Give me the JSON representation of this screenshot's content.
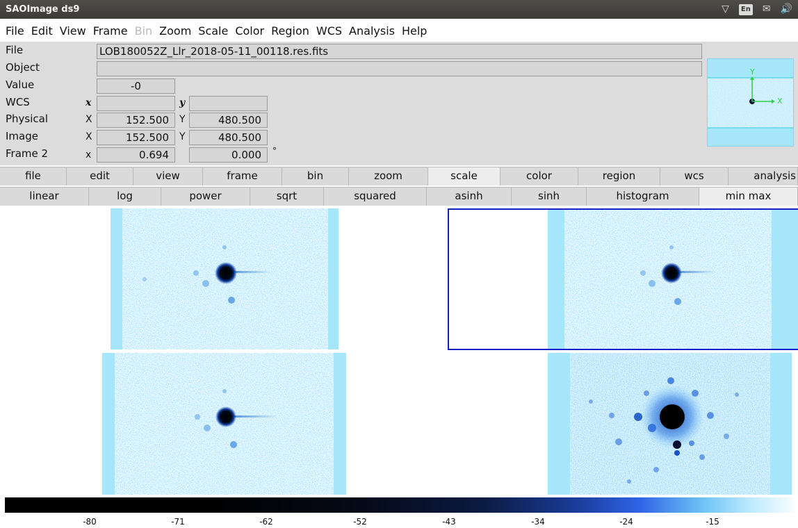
{
  "window": {
    "title": "SAOImage ds9"
  },
  "tray": {
    "lang": "En"
  },
  "menubar": {
    "items": [
      {
        "label": "File",
        "enabled": true
      },
      {
        "label": "Edit",
        "enabled": true
      },
      {
        "label": "View",
        "enabled": true
      },
      {
        "label": "Frame",
        "enabled": true
      },
      {
        "label": "Bin",
        "enabled": false
      },
      {
        "label": "Zoom",
        "enabled": true
      },
      {
        "label": "Scale",
        "enabled": true
      },
      {
        "label": "Color",
        "enabled": true
      },
      {
        "label": "Region",
        "enabled": true
      },
      {
        "label": "WCS",
        "enabled": true
      },
      {
        "label": "Analysis",
        "enabled": true
      },
      {
        "label": "Help",
        "enabled": true
      }
    ]
  },
  "info": {
    "file_label": "File",
    "file_value": "LOB180052Z_Llr_2018-05-11_00118.res.fits",
    "object_label": "Object",
    "object_value": "",
    "value_label": "Value",
    "value_value": "-0",
    "wcs_label": "WCS",
    "wcs_x_axis": "x",
    "wcs_y_axis": "y",
    "wcs_x": "",
    "wcs_y": "",
    "physical_label": "Physical",
    "physical_x_axis": "X",
    "physical_y_axis": "Y",
    "physical_x": "152.500",
    "physical_y": "480.500",
    "image_label": "Image",
    "image_x_axis": "X",
    "image_y_axis": "Y",
    "image_x": "152.500",
    "image_y": "480.500",
    "frame_label": "Frame 2",
    "frame_x_axis": "x",
    "frame_zoom": "0.694",
    "frame_angle": "0.000",
    "frame_angle_unit": "°"
  },
  "panner": {
    "x_label": "X",
    "y_label": "Y"
  },
  "buttonbar": {
    "items": [
      "file",
      "edit",
      "view",
      "frame",
      "bin",
      "zoom",
      "scale",
      "color",
      "region",
      "wcs",
      "analysis"
    ],
    "active": "scale"
  },
  "scalebar": {
    "items": [
      "linear",
      "log",
      "power",
      "sqrt",
      "squared",
      "asinh",
      "sinh",
      "histogram",
      "min max"
    ],
    "active": "min max"
  },
  "colorbar": {
    "ticks": [
      "-80",
      "-71",
      "-62",
      "-52",
      "-43",
      "-34",
      "-24",
      "-15"
    ]
  },
  "colors": {
    "image_background": "#a6e6fb",
    "current_frame_border": "#1620c8"
  }
}
